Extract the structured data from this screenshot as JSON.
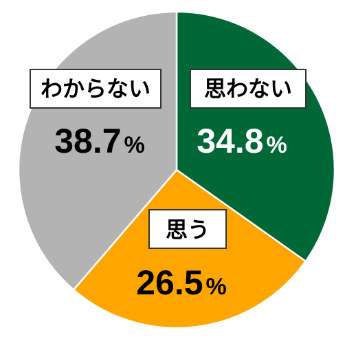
{
  "chart_data": {
    "type": "pie",
    "start": "12 o'clock",
    "direction": "clockwise",
    "slices": [
      {
        "label": "思わない",
        "value": 34.8,
        "display": "34.8",
        "unit": "%",
        "color": "#006837",
        "text_color": "#ffffff"
      },
      {
        "label": "思う",
        "value": 26.5,
        "display": "26.5",
        "unit": "%",
        "color": "#ffa500",
        "text_color": "#000000"
      },
      {
        "label": "わからない",
        "value": 38.7,
        "display": "38.7",
        "unit": "%",
        "color": "#b3b3b3",
        "text_color": "#000000"
      }
    ]
  }
}
